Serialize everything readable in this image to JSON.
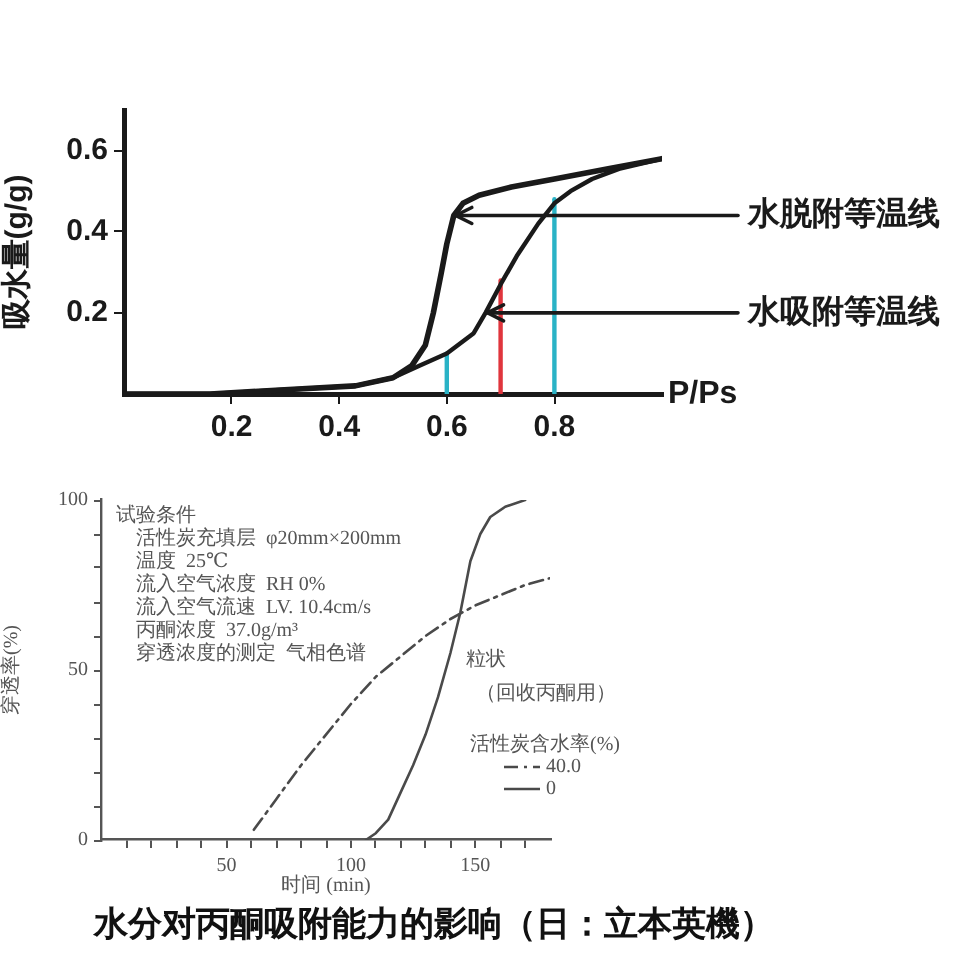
{
  "chart_data": [
    {
      "type": "line",
      "xlabel": "P/Ps",
      "ylabel": "吸水量(g/g)",
      "xlim": [
        0,
        1
      ],
      "xticks": [
        0.2,
        0.4,
        0.6,
        0.8
      ],
      "ylim": [
        0,
        0.7
      ],
      "yticks": [
        0.2,
        0.4,
        0.6
      ],
      "series": [
        {
          "color": "#1a1a1a",
          "x": [
            0,
            0.16,
            0.29,
            0.43,
            0.5,
            0.535,
            0.56,
            0.575,
            0.59,
            0.6,
            0.613,
            0.63,
            0.66,
            0.72,
            0.8,
            0.9,
            1
          ],
          "values": [
            0,
            0,
            0.01,
            0.02,
            0.04,
            0.07,
            0.12,
            0.2,
            0.3,
            0.37,
            0.44,
            0.47,
            0.49,
            0.51,
            0.53,
            0.555,
            0.58
          ]
        },
        {
          "color": "#1a1a1a",
          "x": [
            0,
            0.16,
            0.29,
            0.43,
            0.5,
            0.55,
            0.6,
            0.65,
            0.672,
            0.7,
            0.73,
            0.77,
            0.8,
            0.83,
            0.87,
            0.92,
            1
          ],
          "values": [
            0,
            0,
            0.01,
            0.02,
            0.04,
            0.07,
            0.1,
            0.15,
            0.2,
            0.27,
            0.34,
            0.42,
            0.47,
            0.5,
            0.53,
            0.555,
            0.58
          ]
        },
        {
          "color": "#2ab3c6",
          "x": [
            0.6,
            0.6
          ],
          "values": [
            0,
            0.1
          ]
        },
        {
          "color": "#e0353d",
          "x": [
            0.7,
            0.7
          ],
          "values": [
            0,
            0.28
          ]
        },
        {
          "color": "#2ab3c6",
          "x": [
            0.8,
            0.8
          ],
          "values": [
            0,
            0.48
          ]
        }
      ],
      "annotations": [
        {
          "text": "水脱附等温线",
          "x": 0.613,
          "y": 0.44
        },
        {
          "text": "水吸附等温线",
          "x": 0.672,
          "y": 0.2
        }
      ]
    },
    {
      "type": "line",
      "title": "水分对丙酮吸附能力的影响（日：立本英機）",
      "xlabel": "时间 (min)",
      "ylabel": "穿透率(%)",
      "legend_title": "活性炭含水率(%)",
      "legend": "bottom right",
      "xlim": [
        0,
        180
      ],
      "xticks": [
        {
          "value": 10,
          "label": null
        },
        {
          "value": 20,
          "label": null
        },
        {
          "value": 30,
          "label": null
        },
        {
          "value": 40,
          "label": null
        },
        50,
        {
          "value": 60,
          "label": null
        },
        {
          "value": 70,
          "label": null
        },
        {
          "value": 80,
          "label": null
        },
        {
          "value": 90,
          "label": null
        },
        100,
        {
          "value": 110,
          "label": null
        },
        {
          "value": 120,
          "label": null
        },
        {
          "value": 130,
          "label": null
        },
        {
          "value": 140,
          "label": null
        },
        150,
        {
          "value": 160,
          "label": null
        },
        {
          "value": 170,
          "label": null
        }
      ],
      "ylim": [
        0,
        100
      ],
      "yticks": [
        0,
        {
          "value": 10,
          "label": null
        },
        {
          "value": 20,
          "label": null
        },
        {
          "value": 30,
          "label": null
        },
        {
          "value": 40,
          "label": null
        },
        50,
        {
          "value": 60,
          "label": null
        },
        {
          "value": 70,
          "label": null
        },
        {
          "value": 80,
          "label": null
        },
        {
          "value": 90,
          "label": null
        },
        100
      ],
      "series": [
        {
          "name": "40.0",
          "color": "#4a4a4a",
          "line_style": "dashed",
          "x": [
            61,
            70,
            80,
            90,
            100,
            110,
            120,
            130,
            140,
            150,
            160,
            170,
            180
          ],
          "values": [
            3,
            12,
            22,
            31,
            40,
            48,
            54,
            60,
            65,
            69,
            72,
            75,
            77
          ]
        },
        {
          "name": "0",
          "color": "#4a4a4a",
          "x": [
            106,
            110,
            115,
            120,
            125,
            130,
            135,
            140,
            144,
            148,
            152,
            156,
            162,
            170
          ],
          "values": [
            0,
            2,
            6,
            14,
            22,
            31,
            42,
            55,
            67,
            82,
            90,
            95,
            98,
            100
          ]
        }
      ],
      "annotations": [
        "试验条件",
        "活性炭充填层  φ20mm×200mm",
        "温度  25℃",
        "流入空气浓度  RH 0%",
        "流入空气流速  LV. 10.4cm/s",
        "丙酮浓度  37.0g/m³",
        "穿透浓度的测定  气相色谱",
        "粒状",
        "（回收丙酮用）"
      ]
    }
  ]
}
